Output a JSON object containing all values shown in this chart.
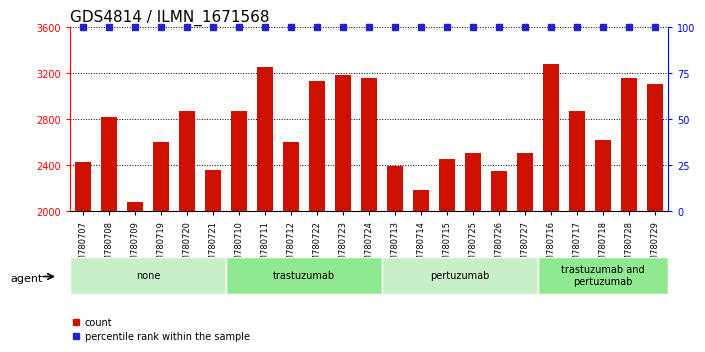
{
  "title": "GDS4814 / ILMN_1671568",
  "samples": [
    "GSM780707",
    "GSM780708",
    "GSM780709",
    "GSM780719",
    "GSM780720",
    "GSM780721",
    "GSM780710",
    "GSM780711",
    "GSM780712",
    "GSM780722",
    "GSM780723",
    "GSM780724",
    "GSM780713",
    "GSM780714",
    "GSM780715",
    "GSM780725",
    "GSM780726",
    "GSM780727",
    "GSM780716",
    "GSM780717",
    "GSM780718",
    "GSM780728",
    "GSM780729"
  ],
  "counts": [
    2430,
    2820,
    2080,
    2600,
    2870,
    2360,
    2870,
    3250,
    2600,
    3130,
    3180,
    3160,
    2390,
    2180,
    2450,
    2500,
    2350,
    2500,
    3280,
    2870,
    2620,
    3160,
    3100
  ],
  "percentile_ranks": [
    100,
    100,
    100,
    100,
    100,
    100,
    100,
    100,
    100,
    100,
    100,
    100,
    100,
    100,
    100,
    100,
    100,
    100,
    100,
    100,
    100,
    100,
    100
  ],
  "ylim_left": [
    2000,
    3600
  ],
  "ylim_right": [
    0,
    100
  ],
  "yticks_left": [
    2000,
    2400,
    2800,
    3200,
    3600
  ],
  "yticks_right": [
    0,
    25,
    50,
    75,
    100
  ],
  "bar_color": "#cc1100",
  "dot_color": "#2222cc",
  "groups": [
    {
      "label": "none",
      "start": 0,
      "end": 6
    },
    {
      "label": "trastuzumab",
      "start": 6,
      "end": 12
    },
    {
      "label": "pertuzumab",
      "start": 12,
      "end": 18
    },
    {
      "label": "trastuzumab and\npertuzumab",
      "start": 18,
      "end": 23
    }
  ],
  "group_colors": [
    "#c8f0c8",
    "#90e890",
    "#c8f0c8",
    "#90e890"
  ],
  "agent_label": "agent",
  "legend_count_label": "count",
  "legend_percentile_label": "percentile rank within the sample",
  "background_color": "#ffffff"
}
